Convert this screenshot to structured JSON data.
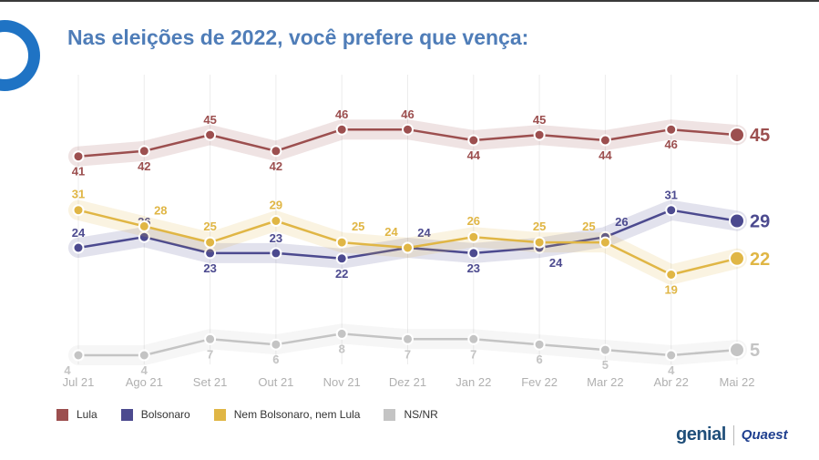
{
  "title": "Nas eleições de 2022, você prefere que vença:",
  "logos": {
    "genial": "genial",
    "quaest": "Quaest"
  },
  "chart_data": {
    "type": "line",
    "title": "Nas eleições de 2022, você prefere que vença:",
    "categories": [
      "Jul 21",
      "Ago 21",
      "Set 21",
      "Out 21",
      "Nov 21",
      "Dez 21",
      "Jan 22",
      "Fev 22",
      "Mar 22",
      "Abr 22",
      "Mai 22"
    ],
    "ylim": [
      0,
      50
    ],
    "grid": "vertical",
    "legend_position": "bottom-left",
    "series": [
      {
        "name": "Lula",
        "color": "#9c4f4f",
        "values": [
          41,
          42,
          45,
          42,
          46,
          46,
          44,
          45,
          44,
          46,
          45
        ]
      },
      {
        "name": "Bolsonaro",
        "color": "#4c4a8f",
        "values": [
          24,
          26,
          23,
          23,
          22,
          24,
          23,
          24,
          26,
          31,
          29
        ]
      },
      {
        "name": "Nem Bolsonaro, nem Lula",
        "color": "#e0b645",
        "values": [
          31,
          28,
          25,
          29,
          25,
          24,
          26,
          25,
          25,
          19,
          22
        ]
      },
      {
        "name": "NS/NR",
        "color": "#c4c4c4",
        "values": [
          4,
          4,
          7,
          6,
          8,
          7,
          7,
          6,
          5,
          4,
          5
        ]
      }
    ]
  }
}
